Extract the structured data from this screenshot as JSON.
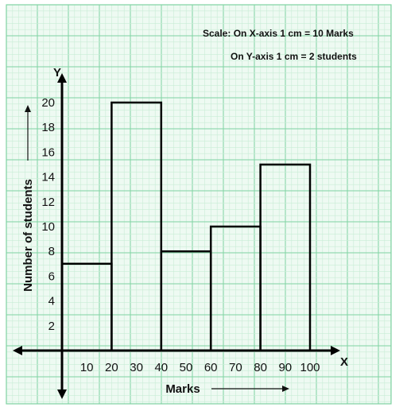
{
  "scale": {
    "x_text": "Scale: On X-axis 1 cm = 10 Marks",
    "y_text": "On Y-axis 1 cm = 2 students"
  },
  "axes": {
    "x_letter": "X",
    "y_letter": "Y"
  },
  "chart_data": {
    "type": "bar",
    "subtype": "histogram",
    "xlabel": "Marks",
    "ylabel": "Number of students",
    "x_ticks": [
      10,
      20,
      30,
      40,
      50,
      60,
      70,
      80,
      90,
      100
    ],
    "y_ticks": [
      2,
      4,
      6,
      8,
      10,
      12,
      14,
      16,
      18,
      20
    ],
    "xlim": [
      0,
      100
    ],
    "ylim": [
      0,
      20
    ],
    "bins": [
      {
        "start": 0,
        "end": 20,
        "value": 7
      },
      {
        "start": 20,
        "end": 40,
        "value": 20
      },
      {
        "start": 40,
        "end": 60,
        "value": 8
      },
      {
        "start": 60,
        "end": 80,
        "value": 10
      },
      {
        "start": 80,
        "end": 100,
        "value": 15
      }
    ],
    "grid": true,
    "colors": {
      "grid_minor": "#c8ecd6",
      "grid_major": "#7fd3a2",
      "background": "#eefaf2",
      "bar_stroke": "#000000",
      "axis": "#000000"
    }
  }
}
